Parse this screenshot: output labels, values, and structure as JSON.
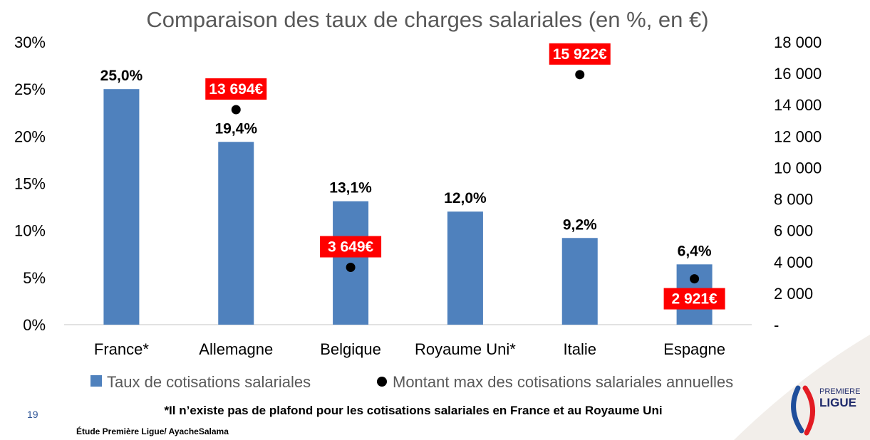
{
  "page_number": "19",
  "footnote": "*Il n’existe pas de plafond pour les cotisations salariales en France et au Royaume Uni",
  "source": "Étude Première Ligue/ AyacheSalama",
  "logo": {
    "line1": "PREMIERE",
    "line2": "LIGUE"
  },
  "colors": {
    "bar": "#4f81bd",
    "label_bg": "#ff0000",
    "marker": "#000000",
    "title": "#595959"
  },
  "chart_data": {
    "type": "bar",
    "title": "Comparaison des taux de charges salariales (en %, en €)",
    "categories": [
      "France*",
      "Allemagne",
      "Belgique",
      "Royaume Uni*",
      "Italie",
      "Espagne"
    ],
    "ylim": [
      0,
      30
    ],
    "y2lim": [
      0,
      18000
    ],
    "yticks": [
      "0%",
      "5%",
      "10%",
      "15%",
      "20%",
      "25%",
      "30%"
    ],
    "y2ticks": [
      "-",
      "2 000",
      "4 000",
      "6 000",
      "8 000",
      "10 000",
      "12 000",
      "14 000",
      "16 000",
      "18 000"
    ],
    "grid": false,
    "legend_position": "bottom",
    "series": [
      {
        "name": "Taux de cotisations salariales",
        "type": "bar",
        "axis": "left",
        "values": [
          25.0,
          19.4,
          13.1,
          12.0,
          9.2,
          6.4
        ],
        "labels": [
          "25,0%",
          "19,4%",
          "13,1%",
          "12,0%",
          "9,2%",
          "6,4%"
        ]
      },
      {
        "name": "Montant max des cotisations salariales annuelles",
        "type": "scatter",
        "axis": "right",
        "values": [
          null,
          13694,
          3649,
          null,
          15922,
          2921
        ],
        "labels": [
          null,
          "13 694€",
          "3 649€",
          null,
          "15 922€",
          "2 921€"
        ]
      }
    ]
  }
}
